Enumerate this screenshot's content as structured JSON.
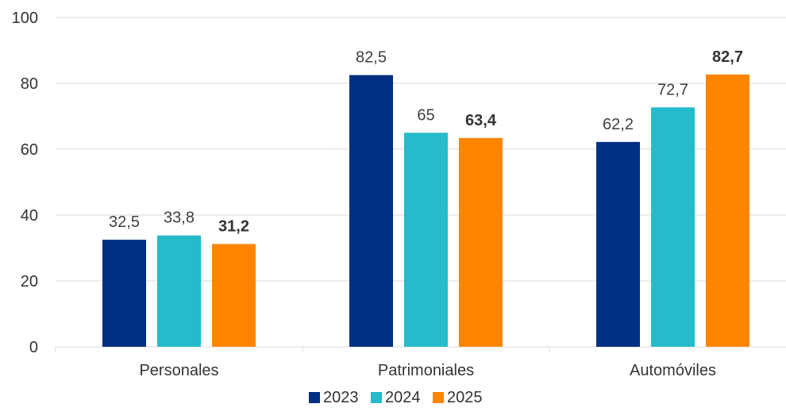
{
  "chart_data": {
    "type": "bar",
    "title": "",
    "xlabel": "",
    "ylabel": "",
    "categories": [
      "Personales",
      "Patrimoniales",
      "Automóviles"
    ],
    "ylim": [
      0,
      100
    ],
    "yticks": [
      0,
      20,
      40,
      60,
      80,
      100
    ],
    "series": [
      {
        "name": "2023",
        "color": "#003082",
        "values": [
          32.5,
          82.5,
          62.2
        ],
        "labels": [
          "32,5",
          "82,5",
          "62,2"
        ],
        "bold_labels": false
      },
      {
        "name": "2024",
        "color": "#25BBCA",
        "values": [
          33.8,
          65,
          72.7
        ],
        "labels": [
          "33,8",
          "65",
          "72,7"
        ],
        "bold_labels": false
      },
      {
        "name": "2025",
        "color": "#FF8500",
        "values": [
          31.2,
          63.4,
          82.7
        ],
        "labels": [
          "31,2",
          "63,4",
          "82,7"
        ],
        "bold_labels": true
      }
    ],
    "grid": true,
    "legend_position": "bottom-center"
  }
}
